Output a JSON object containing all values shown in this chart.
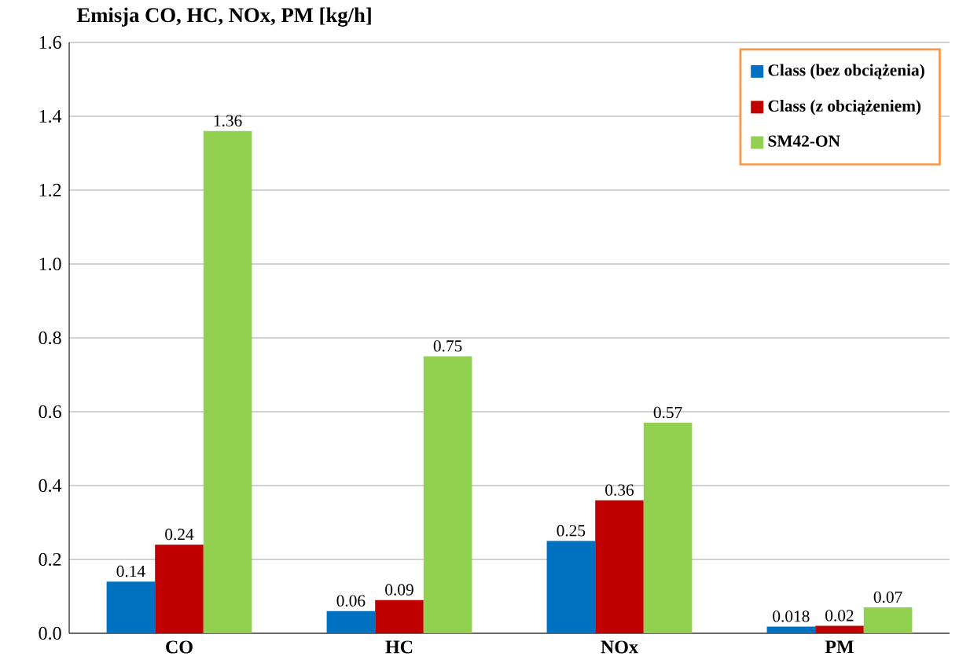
{
  "chart_data": {
    "type": "bar",
    "title": "Emisja CO, HC, NOx, PM [kg/h]",
    "categories": [
      "CO",
      "HC",
      "NOx",
      "PM"
    ],
    "series": [
      {
        "name": "Class (bez obciążenia)",
        "color": "#0070c0",
        "values": [
          0.14,
          0.06,
          0.25,
          0.018
        ]
      },
      {
        "name": "Class (z obciążeniem)",
        "color": "#c00000",
        "values": [
          0.24,
          0.09,
          0.36,
          0.02
        ]
      },
      {
        "name": "SM42-ON",
        "color": "#92d050",
        "values": [
          1.36,
          0.75,
          0.57,
          0.07
        ]
      }
    ],
    "ylim": [
      0,
      1.6
    ],
    "yticks": [
      {
        "value": 0,
        "label": "0.0"
      },
      {
        "value": 0.2,
        "label": "0.2"
      },
      {
        "value": 0.4,
        "label": "0.4"
      },
      {
        "value": 0.6,
        "label": "0.6"
      },
      {
        "value": 0.8,
        "label": "0.8"
      },
      {
        "value": 1.0,
        "label": "1.0"
      },
      {
        "value": 1.2,
        "label": "1.2"
      },
      {
        "value": 1.4,
        "label": "1.4"
      },
      {
        "value": 1.6,
        "label": "1.6"
      }
    ],
    "grid": "y",
    "legend": "top right",
    "data_labels": true
  }
}
